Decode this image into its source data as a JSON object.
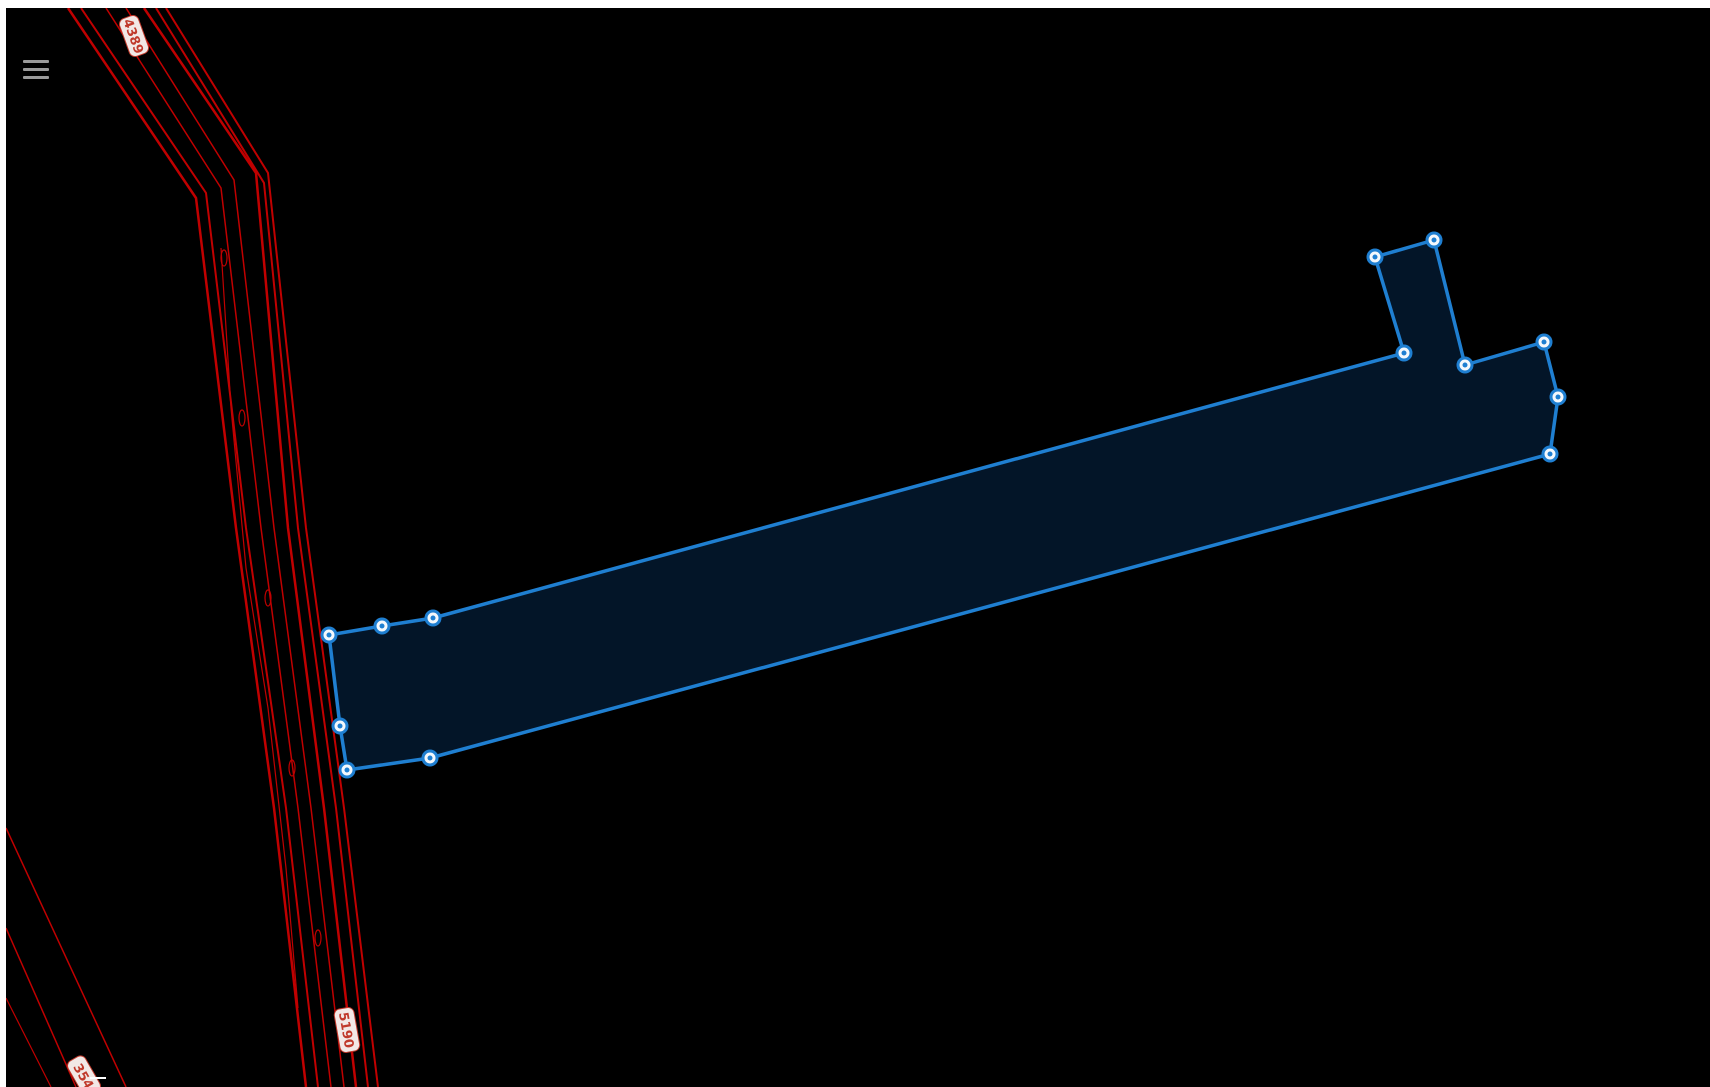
{
  "map": {
    "background_color": "#000000",
    "road_color": "#c00000",
    "parcel_fill": "#031528",
    "parcel_stroke": "#1f7fd1",
    "road_labels": [
      {
        "id": "road-4389",
        "text": "4389"
      },
      {
        "id": "road-5190",
        "text": "5190"
      },
      {
        "id": "road-354",
        "text": "354"
      }
    ]
  },
  "controls": {
    "menu_icon": "hamburger-menu-icon"
  }
}
